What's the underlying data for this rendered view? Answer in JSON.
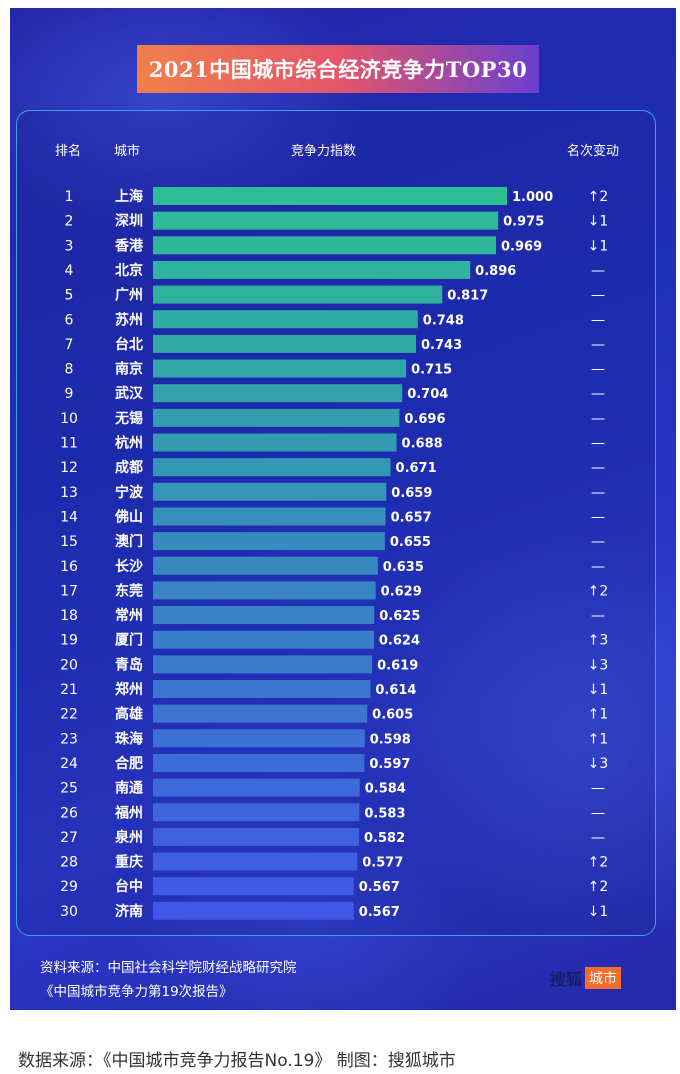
{
  "title": "2021中国城市综合经济竞争力TOP30",
  "headers": {
    "rank": "排名",
    "city": "城市",
    "index": "竞争力指数",
    "change": "名次变动"
  },
  "chart_data": {
    "type": "bar",
    "orientation": "horizontal",
    "title": "2021中国城市综合经济竞争力TOP30",
    "xlim": [
      0,
      1
    ],
    "ranks": [
      "1",
      "2",
      "3",
      "4",
      "5",
      "6",
      "7",
      "8",
      "9",
      "10",
      "11",
      "12",
      "13",
      "14",
      "15",
      "16",
      "17",
      "18",
      "19",
      "20",
      "21",
      "22",
      "23",
      "24",
      "25",
      "26",
      "27",
      "28",
      "29",
      "30"
    ],
    "categories": [
      "上海",
      "深圳",
      "香港",
      "北京",
      "广州",
      "苏州",
      "台北",
      "南京",
      "武汉",
      "无锡",
      "杭州",
      "成都",
      "宁波",
      "佛山",
      "澳门",
      "长沙",
      "东莞",
      "常州",
      "厦门",
      "青岛",
      "郑州",
      "高雄",
      "珠海",
      "合肥",
      "南通",
      "福州",
      "泉州",
      "重庆",
      "台中",
      "济南"
    ],
    "values": [
      1.0,
      0.975,
      0.969,
      0.896,
      0.817,
      0.748,
      0.743,
      0.715,
      0.704,
      0.696,
      0.688,
      0.671,
      0.659,
      0.657,
      0.655,
      0.635,
      0.629,
      0.625,
      0.624,
      0.619,
      0.614,
      0.605,
      0.598,
      0.597,
      0.584,
      0.583,
      0.582,
      0.577,
      0.567,
      0.567
    ],
    "value_labels": [
      "1.000",
      "0.975",
      "0.969",
      "0.896",
      "0.817",
      "0.748",
      "0.743",
      "0.715",
      "0.704",
      "0.696",
      "0.688",
      "0.671",
      "0.659",
      "0.657",
      "0.655",
      "0.635",
      "0.629",
      "0.625",
      "0.624",
      "0.619",
      "0.614",
      "0.605",
      "0.598",
      "0.597",
      "0.584",
      "0.583",
      "0.582",
      "0.577",
      "0.567",
      "0.567"
    ],
    "rank_changes": [
      "↑2",
      "↓1",
      "↓1",
      "—",
      "—",
      "—",
      "—",
      "—",
      "—",
      "—",
      "—",
      "—",
      "—",
      "—",
      "—",
      "—",
      "↑2",
      "—",
      "↑3",
      "↓3",
      "↓1",
      "↑1",
      "↑1",
      "↓3",
      "—",
      "—",
      "—",
      "↑2",
      "↑2",
      "↓1"
    ],
    "bar_color_top": "#2dbf94",
    "bar_color_bottom": "#4057e8"
  },
  "source_line1": "资料来源：中国社会科学院财经战略研究院",
  "source_line2": "《中国城市竞争力第19次报告》",
  "brand": {
    "name": "搜狐",
    "tag": "城市"
  },
  "caption": "数据来源：《中国城市竞争力报告No.19》 制图：搜狐城市",
  "colors": {
    "background": "#1e2fb8",
    "panel_border": "#3da3f0",
    "title_gradient_start": "#f0804a",
    "title_gradient_end": "#6a3fd0",
    "brand_tag": "#f26d2b"
  }
}
